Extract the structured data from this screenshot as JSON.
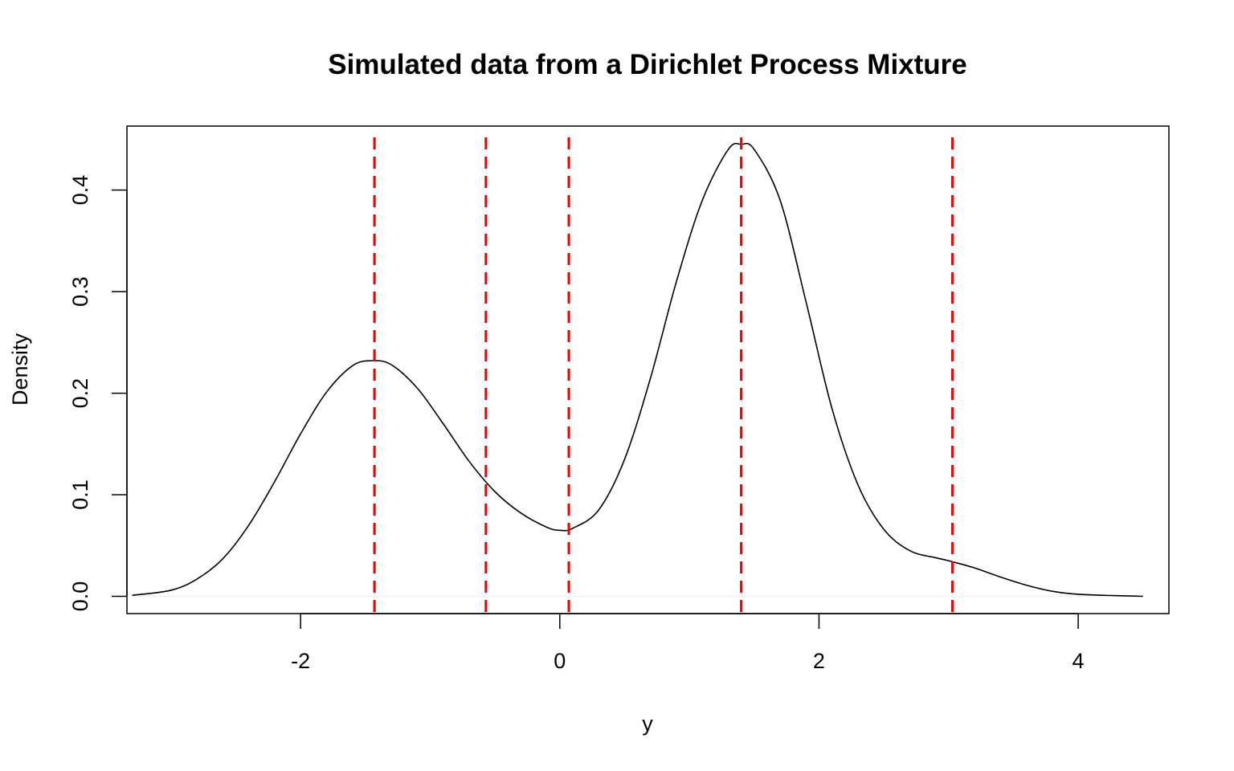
{
  "chart_data": {
    "type": "line",
    "title": "Simulated data from a Dirichlet Process Mixture",
    "xlabel": "y",
    "ylabel": "Density",
    "xlim": [
      -3.34,
      4.7
    ],
    "ylim": [
      -0.017,
      0.463
    ],
    "x_ticks": [
      -2,
      0,
      2,
      4
    ],
    "y_ticks": [
      0.0,
      0.1,
      0.2,
      0.3,
      0.4
    ],
    "x_tick_labels": [
      "-2",
      "0",
      "2",
      "4"
    ],
    "y_tick_labels": [
      "0.0",
      "0.1",
      "0.2",
      "0.3",
      "0.4"
    ],
    "grid": false,
    "series": [
      {
        "color": "#000000",
        "x": [
          -3.3,
          -3.0,
          -2.8,
          -2.6,
          -2.4,
          -2.2,
          -2.0,
          -1.8,
          -1.6,
          -1.45,
          -1.3,
          -1.1,
          -0.9,
          -0.7,
          -0.5,
          -0.3,
          -0.1,
          0.0,
          0.1,
          0.3,
          0.5,
          0.7,
          0.9,
          1.1,
          1.3,
          1.4,
          1.5,
          1.7,
          1.9,
          2.1,
          2.3,
          2.5,
          2.7,
          2.9,
          3.0,
          3.2,
          3.4,
          3.6,
          3.8,
          4.0,
          4.2,
          4.5
        ],
        "y": [
          0.001,
          0.006,
          0.017,
          0.037,
          0.07,
          0.113,
          0.16,
          0.201,
          0.227,
          0.232,
          0.228,
          0.205,
          0.17,
          0.133,
          0.103,
          0.082,
          0.068,
          0.065,
          0.067,
          0.085,
          0.135,
          0.215,
          0.31,
          0.39,
          0.44,
          0.445,
          0.44,
          0.39,
          0.29,
          0.185,
          0.11,
          0.066,
          0.045,
          0.038,
          0.035,
          0.028,
          0.019,
          0.011,
          0.005,
          0.002,
          0.001,
          0.0
        ]
      }
    ],
    "vlines": {
      "color": "#ff0000",
      "style": "dashed",
      "x": [
        -1.43,
        -0.57,
        0.07,
        1.4,
        3.03
      ]
    }
  }
}
